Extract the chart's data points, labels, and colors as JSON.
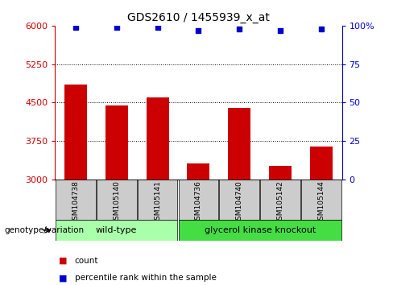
{
  "title": "GDS2610 / 1455939_x_at",
  "samples": [
    "GSM104738",
    "GSM105140",
    "GSM105141",
    "GSM104736",
    "GSM104740",
    "GSM105142",
    "GSM105144"
  ],
  "bar_values": [
    4850,
    4450,
    4600,
    3320,
    4400,
    3270,
    3650
  ],
  "percentile_values": [
    99,
    99,
    99,
    97,
    98,
    97,
    98
  ],
  "bar_color": "#cc0000",
  "dot_color": "#0000cc",
  "ylim_left": [
    3000,
    6000
  ],
  "ylim_right": [
    0,
    100
  ],
  "yticks_left": [
    3000,
    3750,
    4500,
    5250,
    6000
  ],
  "yticks_right": [
    0,
    25,
    50,
    75,
    100
  ],
  "group1_label": "wild-type",
  "group2_label": "glycerol kinase knockout",
  "group1_indices": [
    0,
    1,
    2
  ],
  "group2_indices": [
    3,
    4,
    5,
    6
  ],
  "group1_color": "#aaffaa",
  "group2_color": "#44dd44",
  "xlabel_label": "genotype/variation",
  "legend_count": "count",
  "legend_percentile": "percentile rank within the sample",
  "bg_color": "#ffffff",
  "tick_area_color": "#cccccc",
  "fig_width": 4.88,
  "fig_height": 3.54
}
